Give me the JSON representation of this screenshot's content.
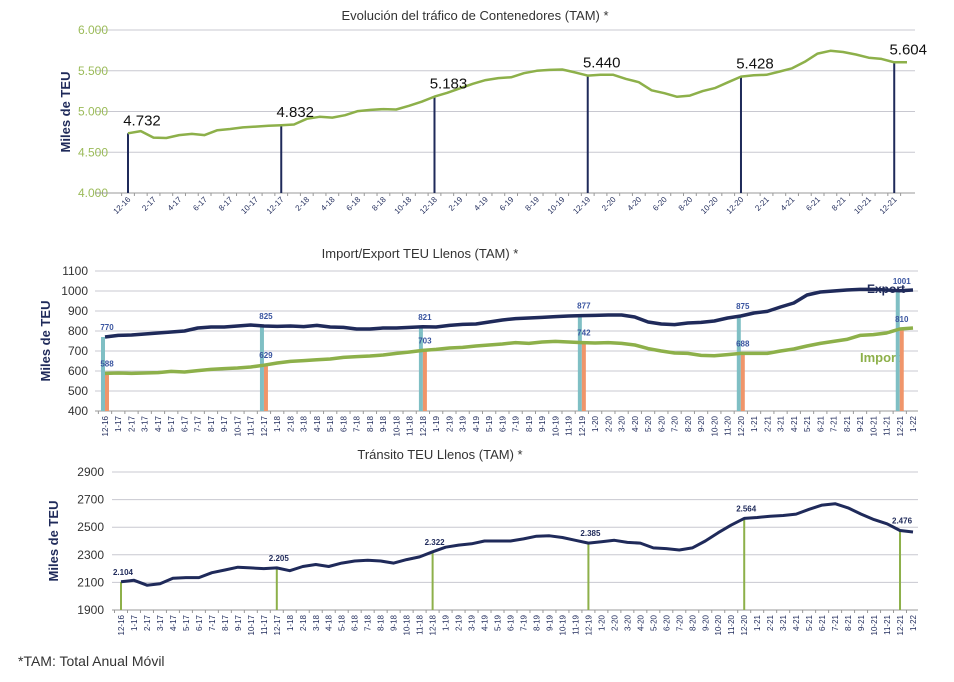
{
  "footnote": "*TAM: Total Anual Móvil",
  "chart_data": [
    {
      "type": "line",
      "title": "Evolución del tráfico de Contenedores (TAM) *",
      "ylabel": "Miles de TEU",
      "ylim": [
        4000,
        6000
      ],
      "yticks": [
        "4.000",
        "4.500",
        "5.000",
        "5.500",
        "6.000"
      ],
      "ytick_values": [
        4000,
        4500,
        5000,
        5500,
        6000
      ],
      "ytick_color": "#9bbb59",
      "grid": true,
      "xtick_labels": [
        "12-16",
        "2-17",
        "4-17",
        "6-17",
        "8-17",
        "10-17",
        "12-17",
        "2-18",
        "4-18",
        "6-18",
        "8-18",
        "10-18",
        "12-18",
        "2-19",
        "4-19",
        "6-19",
        "8-19",
        "10-19",
        "12-19",
        "2-20",
        "4-20",
        "6-20",
        "8-20",
        "10-20",
        "12-20",
        "2-21",
        "4-21",
        "6-21",
        "8-21",
        "10-21",
        "12-21"
      ],
      "series": [
        {
          "color": "#8db04a",
          "values": [
            4732,
            4760,
            4680,
            4675,
            4710,
            4725,
            4710,
            4770,
            4785,
            4805,
            4815,
            4825,
            4832,
            4840,
            4910,
            4935,
            4925,
            4955,
            5005,
            5020,
            5030,
            5025,
            5070,
            5120,
            5183,
            5230,
            5285,
            5340,
            5385,
            5410,
            5420,
            5470,
            5500,
            5510,
            5515,
            5480,
            5440,
            5450,
            5450,
            5400,
            5360,
            5260,
            5225,
            5180,
            5195,
            5250,
            5290,
            5360,
            5428,
            5445,
            5450,
            5490,
            5530,
            5610,
            5710,
            5745,
            5730,
            5700,
            5660,
            5645,
            5604,
            5605
          ]
        }
      ],
      "highlights": [
        {
          "index": 0,
          "label": "4.732",
          "value": 4732
        },
        {
          "index": 12,
          "label": "4.832",
          "value": 4832
        },
        {
          "index": 24,
          "label": "5.183",
          "value": 5183
        },
        {
          "index": 36,
          "label": "5.440",
          "value": 5440
        },
        {
          "index": 48,
          "label": "5.428",
          "value": 5428
        },
        {
          "index": 60,
          "label": "5.604",
          "value": 5604
        }
      ],
      "highlight_color": "#1f2a5a"
    },
    {
      "type": "line",
      "title": "Import/Export TEU Llenos (TAM) *",
      "ylabel": "Miles de TEU",
      "ylim": [
        400,
        1100
      ],
      "yticks": [
        "400",
        "500",
        "600",
        "700",
        "800",
        "900",
        "1000",
        "1100"
      ],
      "ytick_values": [
        400,
        500,
        600,
        700,
        800,
        900,
        1000,
        1100
      ],
      "grid": true,
      "xtick_labels": [
        "12-16",
        "1-17",
        "2-17",
        "3-17",
        "4-17",
        "5-17",
        "6-17",
        "7-17",
        "8-17",
        "9-17",
        "10-17",
        "11-17",
        "12-17",
        "1-18",
        "2-18",
        "3-18",
        "4-18",
        "5-18",
        "6-18",
        "7-18",
        "8-18",
        "9-18",
        "10-18",
        "11-18",
        "12-18",
        "1-19",
        "2-19",
        "3-19",
        "4-19",
        "5-19",
        "6-19",
        "7-19",
        "8-19",
        "9-19",
        "10-19",
        "11-19",
        "12-19",
        "1-20",
        "2-20",
        "3-20",
        "4-20",
        "5-20",
        "6-20",
        "7-20",
        "8-20",
        "9-20",
        "10-20",
        "11-20",
        "12-20",
        "1-21",
        "2-21",
        "3-21",
        "4-21",
        "5-21",
        "6-21",
        "7-21",
        "8-21",
        "9-21",
        "10-21",
        "11-21",
        "12-21",
        "1-22"
      ],
      "series": [
        {
          "name": "Export",
          "color": "#1f2a5a",
          "bar_color": "#7fbfc4",
          "values": [
            770,
            778,
            780,
            785,
            790,
            795,
            800,
            815,
            820,
            820,
            825,
            830,
            825,
            823,
            825,
            822,
            828,
            820,
            818,
            810,
            810,
            815,
            815,
            818,
            821,
            820,
            828,
            833,
            835,
            845,
            855,
            862,
            865,
            868,
            872,
            875,
            877,
            878,
            880,
            880,
            870,
            845,
            835,
            832,
            840,
            843,
            850,
            865,
            875,
            890,
            898,
            920,
            940,
            980,
            995,
            1000,
            1005,
            1008,
            1008,
            1005,
            1001,
            1005
          ],
          "highlights": [
            {
              "index": 0,
              "label": "770",
              "value": 770
            },
            {
              "index": 12,
              "label": "825",
              "value": 825
            },
            {
              "index": 24,
              "label": "821",
              "value": 821
            },
            {
              "index": 36,
              "label": "877",
              "value": 877
            },
            {
              "index": 48,
              "label": "875",
              "value": 875
            },
            {
              "index": 60,
              "label": "1001",
              "value": 1001
            }
          ]
        },
        {
          "name": "Import",
          "color": "#8db04a",
          "bar_color": "#f0956a",
          "values": [
            588,
            590,
            588,
            590,
            592,
            598,
            595,
            602,
            608,
            612,
            615,
            620,
            629,
            640,
            648,
            652,
            656,
            660,
            668,
            672,
            675,
            680,
            688,
            695,
            703,
            708,
            715,
            718,
            725,
            730,
            735,
            742,
            738,
            745,
            748,
            745,
            742,
            740,
            742,
            738,
            730,
            712,
            700,
            690,
            688,
            678,
            676,
            682,
            688,
            688,
            688,
            700,
            710,
            725,
            738,
            748,
            758,
            778,
            782,
            790,
            810,
            815
          ],
          "highlights": [
            {
              "index": 0,
              "label": "588",
              "value": 588
            },
            {
              "index": 12,
              "label": "629",
              "value": 629
            },
            {
              "index": 24,
              "label": "703",
              "value": 703
            },
            {
              "index": 36,
              "label": "742",
              "value": 742
            },
            {
              "index": 48,
              "label": "688",
              "value": 688
            },
            {
              "index": 60,
              "label": "810",
              "value": 810
            }
          ]
        }
      ],
      "label_color": "#3a55a0"
    },
    {
      "type": "line",
      "title": "Tránsito TEU Llenos (TAM) *",
      "ylabel": "Miles de TEU",
      "ylim": [
        1900,
        2900
      ],
      "yticks": [
        "1900",
        "2100",
        "2300",
        "2500",
        "2700",
        "2900"
      ],
      "ytick_values": [
        1900,
        2100,
        2300,
        2500,
        2700,
        2900
      ],
      "grid": true,
      "xtick_labels": [
        "12-16",
        "1-17",
        "2-17",
        "3-17",
        "4-17",
        "5-17",
        "6-17",
        "7-17",
        "8-17",
        "9-17",
        "10-17",
        "11-17",
        "12-17",
        "1-18",
        "2-18",
        "3-18",
        "4-18",
        "5-18",
        "6-18",
        "7-18",
        "8-18",
        "9-18",
        "10-18",
        "11-18",
        "12-18",
        "1-19",
        "2-19",
        "3-19",
        "4-19",
        "5-19",
        "6-19",
        "7-19",
        "8-19",
        "9-19",
        "10-19",
        "11-19",
        "12-19",
        "1-20",
        "2-20",
        "3-20",
        "4-20",
        "5-20",
        "6-20",
        "7-20",
        "8-20",
        "9-20",
        "10-20",
        "11-20",
        "12-20",
        "1-21",
        "2-21",
        "3-21",
        "4-21",
        "5-21",
        "6-21",
        "7-21",
        "8-21",
        "9-21",
        "10-21",
        "11-21",
        "12-21",
        "1-22"
      ],
      "series": [
        {
          "color": "#1f2a5a",
          "values": [
            2104,
            2115,
            2080,
            2090,
            2130,
            2135,
            2135,
            2170,
            2190,
            2210,
            2205,
            2200,
            2205,
            2185,
            2215,
            2230,
            2215,
            2240,
            2255,
            2260,
            2255,
            2240,
            2265,
            2285,
            2322,
            2355,
            2370,
            2380,
            2400,
            2400,
            2400,
            2415,
            2435,
            2438,
            2425,
            2405,
            2385,
            2395,
            2405,
            2390,
            2385,
            2350,
            2345,
            2335,
            2350,
            2400,
            2460,
            2515,
            2564,
            2570,
            2580,
            2585,
            2595,
            2630,
            2660,
            2670,
            2640,
            2595,
            2555,
            2525,
            2476,
            2465
          ]
        }
      ],
      "highlights": [
        {
          "index": 0,
          "label": "2.104",
          "value": 2104
        },
        {
          "index": 12,
          "label": "2.205",
          "value": 2205
        },
        {
          "index": 24,
          "label": "2.322",
          "value": 2322
        },
        {
          "index": 36,
          "label": "2.385",
          "value": 2385
        },
        {
          "index": 48,
          "label": "2.564",
          "value": 2564
        },
        {
          "index": 60,
          "label": "2.476",
          "value": 2476
        }
      ],
      "highlight_color": "#8db04a"
    }
  ]
}
